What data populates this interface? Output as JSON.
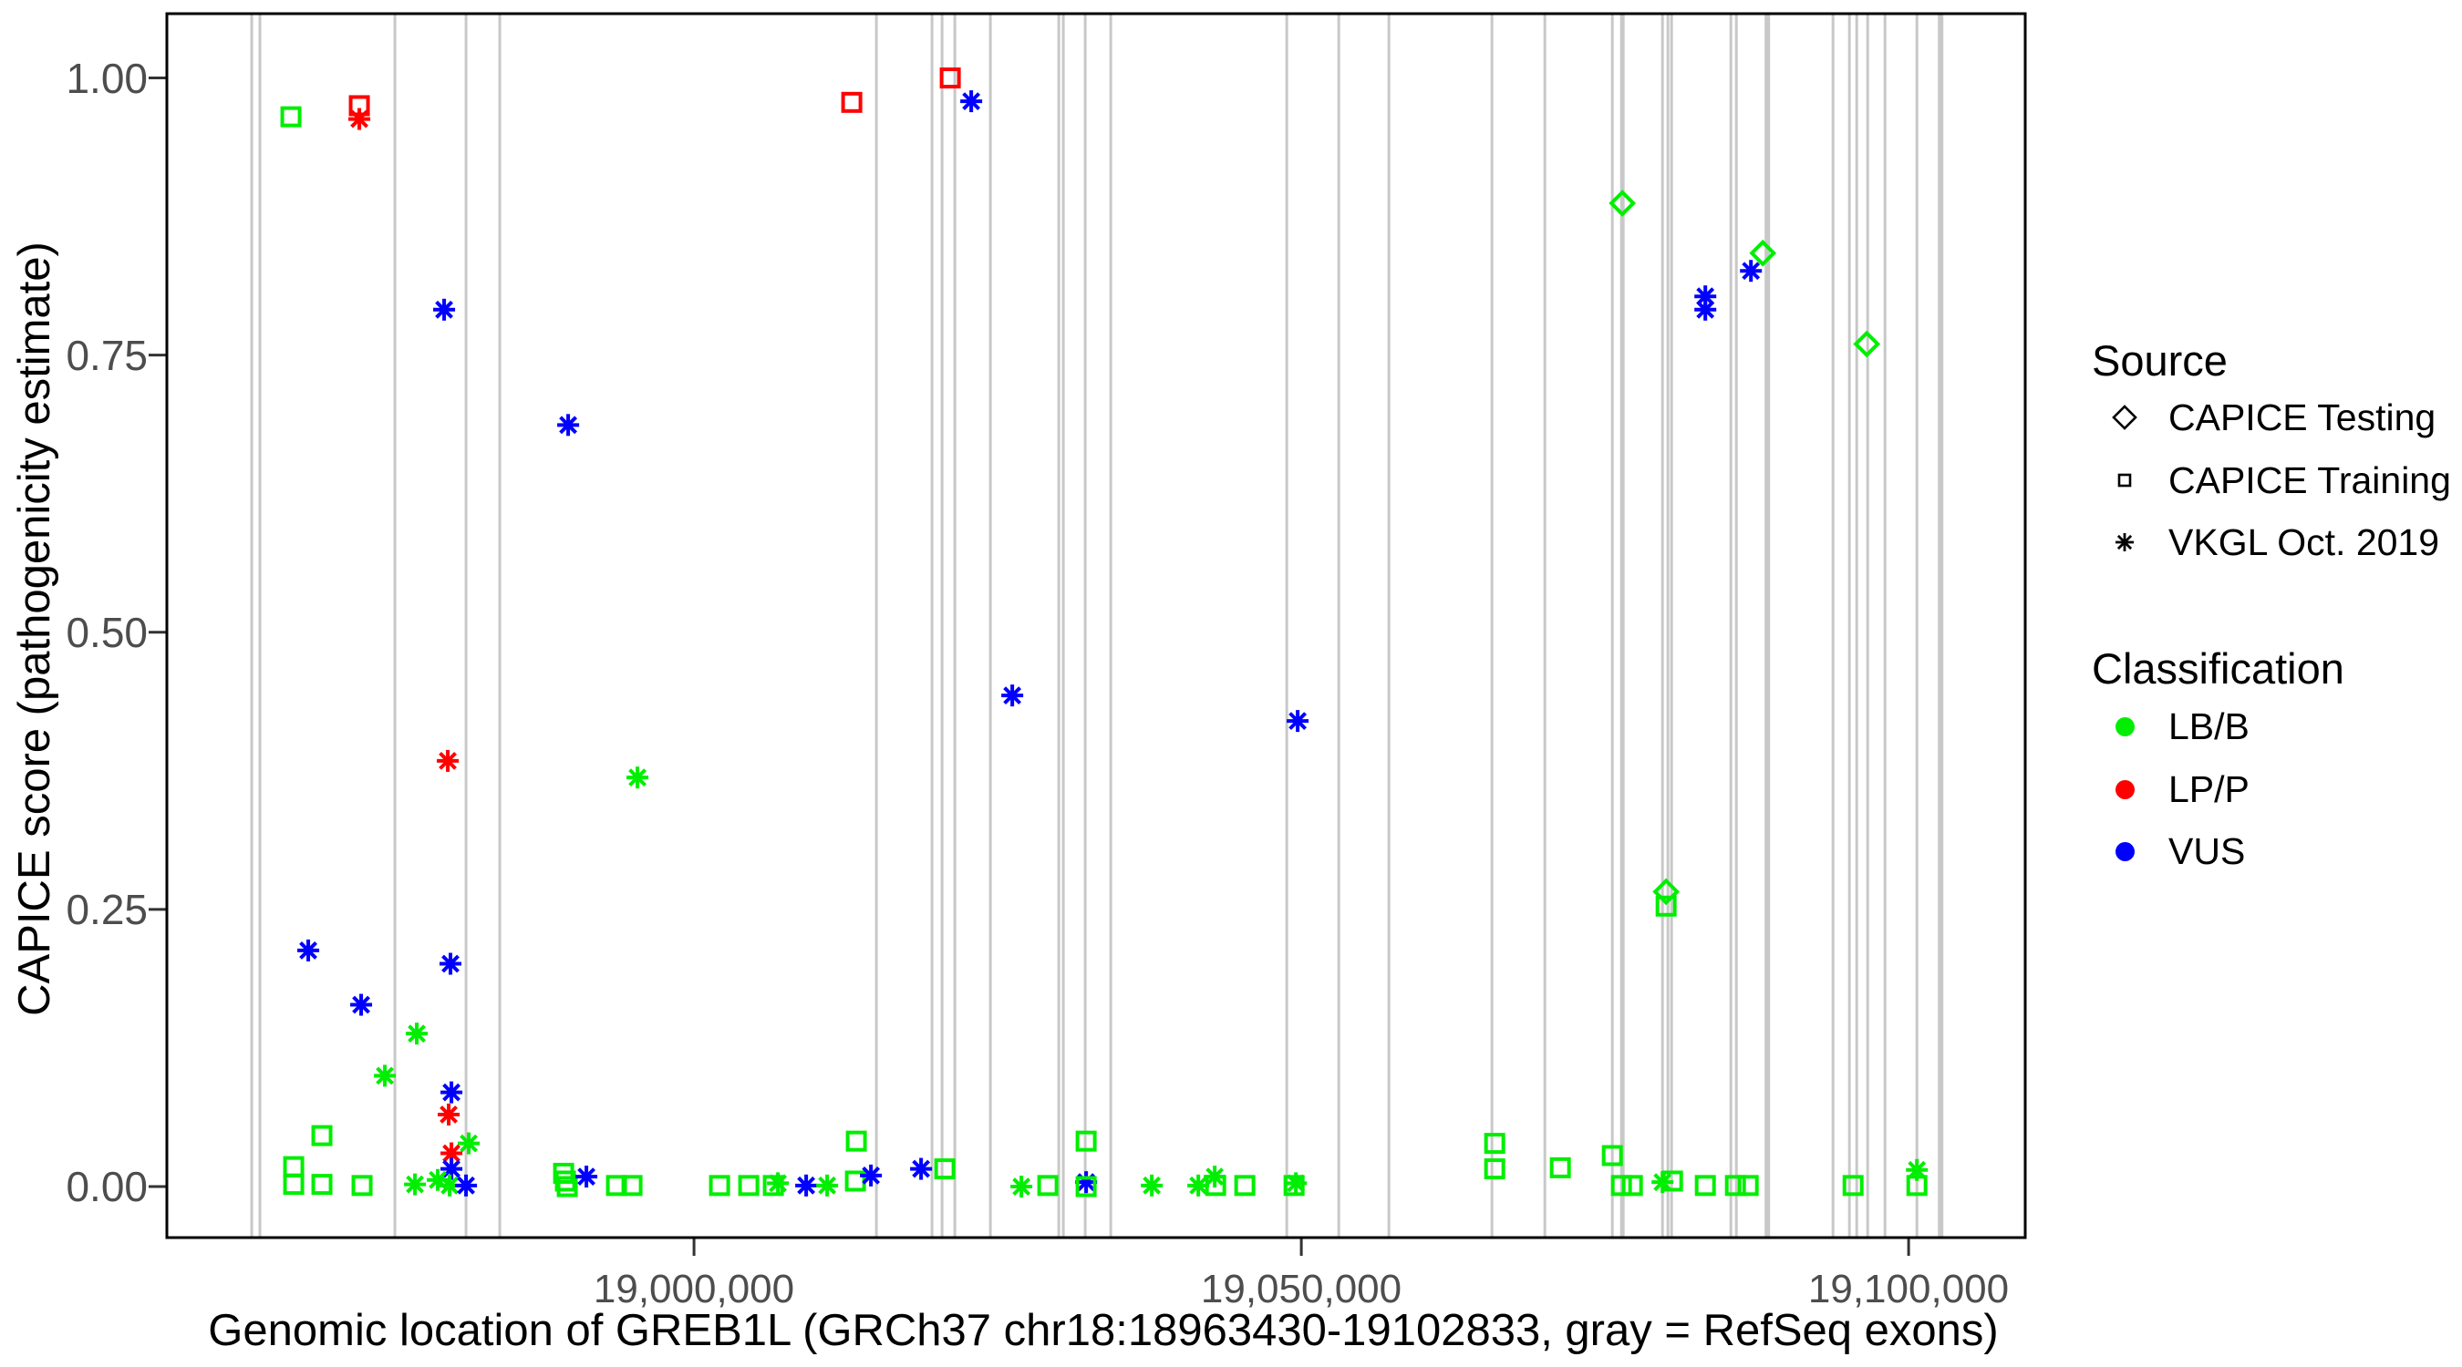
{
  "figure": {
    "y_axis": {
      "title": "CAPICE score (pathogenicity estimate)",
      "tick_labels": [
        "1.00",
        "0.75",
        "0.50",
        "0.25",
        "0.00"
      ]
    },
    "x_axis": {
      "title": "Genomic location of GREB1L (GRCh37 chr18:18963430-19102833, gray = RefSeq exons)",
      "tick_labels": [
        "19,000,000",
        "19,050,000",
        "19,100,000"
      ]
    },
    "legend": {
      "source_title": "Source",
      "source_items": [
        {
          "label": "CAPICE Testing",
          "marker": "diamond"
        },
        {
          "label": "CAPICE Training",
          "marker": "square"
        },
        {
          "label": "VKGL Oct. 2019",
          "marker": "asterisk"
        }
      ],
      "classification_title": "Classification",
      "classification_items": [
        {
          "label": "LB/B",
          "color": "#00EE00"
        },
        {
          "label": "LP/P",
          "color": "#FF0000"
        },
        {
          "label": "VUS",
          "color": "#0000FF"
        }
      ]
    }
  },
  "chart_data": {
    "type": "scatter",
    "title": "",
    "xlabel": "Genomic location of GREB1L (GRCh37 chr18:18963430-19102833, gray = RefSeq exons)",
    "ylabel": "CAPICE score (pathogenicity estimate)",
    "x_domain": [
      18956600,
      19109600
    ],
    "y_domain": [
      -0.046,
      1.058
    ],
    "x_ticks": [
      19000000,
      19050000,
      19100000
    ],
    "y_ticks": [
      0,
      0.25,
      0.5,
      0.75,
      1
    ],
    "grid": false,
    "legend_position": "right",
    "marker_by_source": {
      "CAPICE Testing": "diamond",
      "CAPICE Training": "square",
      "VKGL Oct. 2019": "asterisk"
    },
    "color_by_classification": {
      "LB/B": "#00EE00",
      "LP/P": "#FF0000",
      "VUS": "#0000FF"
    },
    "exon_line_color": "#C8C8C8",
    "refseq_exon_lines": [
      {
        "x": 18963586,
        "w": 3
      },
      {
        "x": 18964262,
        "w": 3
      },
      {
        "x": 18975374,
        "w": 3
      },
      {
        "x": 18981230,
        "w": 3
      },
      {
        "x": 18984008,
        "w": 3
      },
      {
        "x": 19015016,
        "w": 3
      },
      {
        "x": 19019596,
        "w": 3
      },
      {
        "x": 19020422,
        "w": 3
      },
      {
        "x": 19021473,
        "w": 3
      },
      {
        "x": 19024401,
        "w": 3
      },
      {
        "x": 19030032,
        "w": 3
      },
      {
        "x": 19030407,
        "w": 3
      },
      {
        "x": 19032209,
        "w": 3
      },
      {
        "x": 19034312,
        "w": 3
      },
      {
        "x": 19048802,
        "w": 3
      },
      {
        "x": 19053082,
        "w": 3
      },
      {
        "x": 19057211,
        "w": 3
      },
      {
        "x": 19065695,
        "w": 3
      },
      {
        "x": 19070050,
        "w": 3
      },
      {
        "x": 19075606,
        "w": 3
      },
      {
        "x": 19076431,
        "w": 5
      },
      {
        "x": 19079735,
        "w": 3
      },
      {
        "x": 19080185,
        "w": 3
      },
      {
        "x": 19080486,
        "w": 3
      },
      {
        "x": 19085366,
        "w": 3
      },
      {
        "x": 19085816,
        "w": 3
      },
      {
        "x": 19088369,
        "w": 6
      },
      {
        "x": 19093775,
        "w": 3
      },
      {
        "x": 19095126,
        "w": 3
      },
      {
        "x": 19095727,
        "w": 3
      },
      {
        "x": 19096628,
        "w": 3
      },
      {
        "x": 19098055,
        "w": 3
      },
      {
        "x": 19100682,
        "w": 3
      },
      {
        "x": 19102634,
        "w": 6
      }
    ],
    "point_format": [
      "genomic_position",
      "capice_score",
      "source",
      "classification"
    ],
    "points": [
      [
        18966815,
        0.965,
        "CAPICE Training",
        "LB/B"
      ],
      [
        18972446,
        0.975,
        "CAPICE Training",
        "LP/P"
      ],
      [
        18972446,
        0.963,
        "VKGL Oct. 2019",
        "LP/P"
      ],
      [
        18979428,
        0.791,
        "VKGL Oct. 2019",
        "VUS"
      ],
      [
        18989639,
        0.687,
        "VKGL Oct. 2019",
        "VUS"
      ],
      [
        19012989,
        0.978,
        "CAPICE Training",
        "LP/P"
      ],
      [
        19021097,
        1.0,
        "CAPICE Training",
        "LP/P"
      ],
      [
        19022824,
        0.979,
        "VKGL Oct. 2019",
        "VUS"
      ],
      [
        18979728,
        0.384,
        "VKGL Oct. 2019",
        "LP/P"
      ],
      [
        18995345,
        0.369,
        "VKGL Oct. 2019",
        "LB/B"
      ],
      [
        19026203,
        0.443,
        "VKGL Oct. 2019",
        "VUS"
      ],
      [
        19049700,
        0.42,
        "VKGL Oct. 2019",
        "VUS"
      ],
      [
        19076431,
        0.887,
        "CAPICE Testing",
        "LB/B"
      ],
      [
        19087994,
        0.842,
        "CAPICE Testing",
        "LB/B"
      ],
      [
        19087018,
        0.826,
        "VKGL Oct. 2019",
        "VUS"
      ],
      [
        19083264,
        0.803,
        "VKGL Oct. 2019",
        "VUS"
      ],
      [
        19083264,
        0.791,
        "VKGL Oct. 2019",
        "VUS"
      ],
      [
        19096553,
        0.76,
        "CAPICE Testing",
        "LB/B"
      ],
      [
        19080035,
        0.266,
        "CAPICE Testing",
        "LB/B"
      ],
      [
        19080035,
        0.253,
        "CAPICE Training",
        "LB/B"
      ],
      [
        18968241,
        0.213,
        "VKGL Oct. 2019",
        "VUS"
      ],
      [
        18979950,
        0.201,
        "VKGL Oct. 2019",
        "VUS"
      ],
      [
        18972596,
        0.164,
        "VKGL Oct. 2019",
        "VUS"
      ],
      [
        18977176,
        0.138,
        "VKGL Oct. 2019",
        "LB/B"
      ],
      [
        18974548,
        0.1,
        "VKGL Oct. 2019",
        "LB/B"
      ],
      [
        18980029,
        0.085,
        "VKGL Oct. 2019",
        "VUS"
      ],
      [
        18979803,
        0.065,
        "VKGL Oct. 2019",
        "LP/P"
      ],
      [
        18969367,
        0.046,
        "CAPICE Training",
        "LB/B"
      ],
      [
        18981455,
        0.039,
        "VKGL Oct. 2019",
        "LB/B"
      ],
      [
        18980029,
        0.03,
        "VKGL Oct. 2019",
        "LP/P"
      ],
      [
        18980029,
        0.016,
        "VKGL Oct. 2019",
        "VUS"
      ],
      [
        18967040,
        0.018,
        "CAPICE Training",
        "LB/B"
      ],
      [
        18967040,
        0.002,
        "CAPICE Training",
        "LB/B"
      ],
      [
        18969367,
        0.002,
        "CAPICE Training",
        "LB/B"
      ],
      [
        18972671,
        0.001,
        "CAPICE Training",
        "LB/B"
      ],
      [
        18977026,
        0.002,
        "VKGL Oct. 2019",
        "LB/B"
      ],
      [
        18978903,
        0.006,
        "VKGL Oct. 2019",
        "LB/B"
      ],
      [
        18979879,
        0.001,
        "VKGL Oct. 2019",
        "LB/B"
      ],
      [
        18981230,
        0.001,
        "VKGL Oct. 2019",
        "VUS"
      ],
      [
        18989264,
        0.012,
        "CAPICE Training",
        "LB/B"
      ],
      [
        18989414,
        0.005,
        "CAPICE Training",
        "LB/B"
      ],
      [
        18989564,
        0.0,
        "CAPICE Training",
        "LB/B"
      ],
      [
        18991141,
        0.009,
        "VKGL Oct. 2019",
        "VUS"
      ],
      [
        18993618,
        0.001,
        "CAPICE Training",
        "LB/B"
      ],
      [
        18994895,
        0.001,
        "CAPICE Training",
        "LB/B"
      ],
      [
        19002102,
        0.001,
        "CAPICE Training",
        "LB/B"
      ],
      [
        19004505,
        0.001,
        "CAPICE Training",
        "LB/B"
      ],
      [
        19006532,
        0.001,
        "CAPICE Training",
        "LB/B"
      ],
      [
        19006907,
        0.003,
        "VKGL Oct. 2019",
        "LB/B"
      ],
      [
        19009235,
        0.001,
        "VKGL Oct. 2019",
        "VUS"
      ],
      [
        19010962,
        0.001,
        "VKGL Oct. 2019",
        "LB/B"
      ],
      [
        19013289,
        0.005,
        "CAPICE Training",
        "LB/B"
      ],
      [
        19013364,
        0.041,
        "CAPICE Training",
        "LB/B"
      ],
      [
        19014566,
        0.01,
        "VKGL Oct. 2019",
        "VUS"
      ],
      [
        19018695,
        0.016,
        "VKGL Oct. 2019",
        "VUS"
      ],
      [
        19020647,
        0.016,
        "CAPICE Training",
        "LB/B"
      ],
      [
        19026954,
        0.0,
        "VKGL Oct. 2019",
        "LB/B"
      ],
      [
        19029131,
        0.001,
        "CAPICE Training",
        "LB/B"
      ],
      [
        19032284,
        0.041,
        "CAPICE Training",
        "LB/B"
      ],
      [
        19032284,
        0.004,
        "VKGL Oct. 2019",
        "VUS"
      ],
      [
        19032284,
        0.0,
        "CAPICE Training",
        "LB/B"
      ],
      [
        19037690,
        0.001,
        "VKGL Oct. 2019",
        "LB/B"
      ],
      [
        19041519,
        0.001,
        "VKGL Oct. 2019",
        "LB/B"
      ],
      [
        19042871,
        0.009,
        "VKGL Oct. 2019",
        "LB/B"
      ],
      [
        19042946,
        0.001,
        "CAPICE Training",
        "LB/B"
      ],
      [
        19045348,
        0.001,
        "CAPICE Training",
        "LB/B"
      ],
      [
        19049403,
        0.001,
        "CAPICE Training",
        "LB/B"
      ],
      [
        19049553,
        0.003,
        "VKGL Oct. 2019",
        "LB/B"
      ],
      [
        19065920,
        0.039,
        "CAPICE Training",
        "LB/B"
      ],
      [
        19065920,
        0.016,
        "CAPICE Training",
        "LB/B"
      ],
      [
        19071326,
        0.017,
        "CAPICE Training",
        "LB/B"
      ],
      [
        19075606,
        0.028,
        "CAPICE Training",
        "LB/B"
      ],
      [
        19076356,
        0.001,
        "CAPICE Training",
        "LB/B"
      ],
      [
        19077257,
        0.001,
        "CAPICE Training",
        "LB/B"
      ],
      [
        19079735,
        0.004,
        "VKGL Oct. 2019",
        "LB/B"
      ],
      [
        19080561,
        0.005,
        "CAPICE Training",
        "LB/B"
      ],
      [
        19083264,
        0.001,
        "CAPICE Training",
        "LB/B"
      ],
      [
        19085741,
        0.001,
        "CAPICE Training",
        "LB/B"
      ],
      [
        19086792,
        0.001,
        "CAPICE Training",
        "LB/B"
      ],
      [
        19095427,
        0.001,
        "CAPICE Training",
        "LB/B"
      ],
      [
        19100682,
        0.015,
        "VKGL Oct. 2019",
        "LB/B"
      ],
      [
        19100682,
        0.001,
        "CAPICE Training",
        "LB/B"
      ]
    ]
  }
}
